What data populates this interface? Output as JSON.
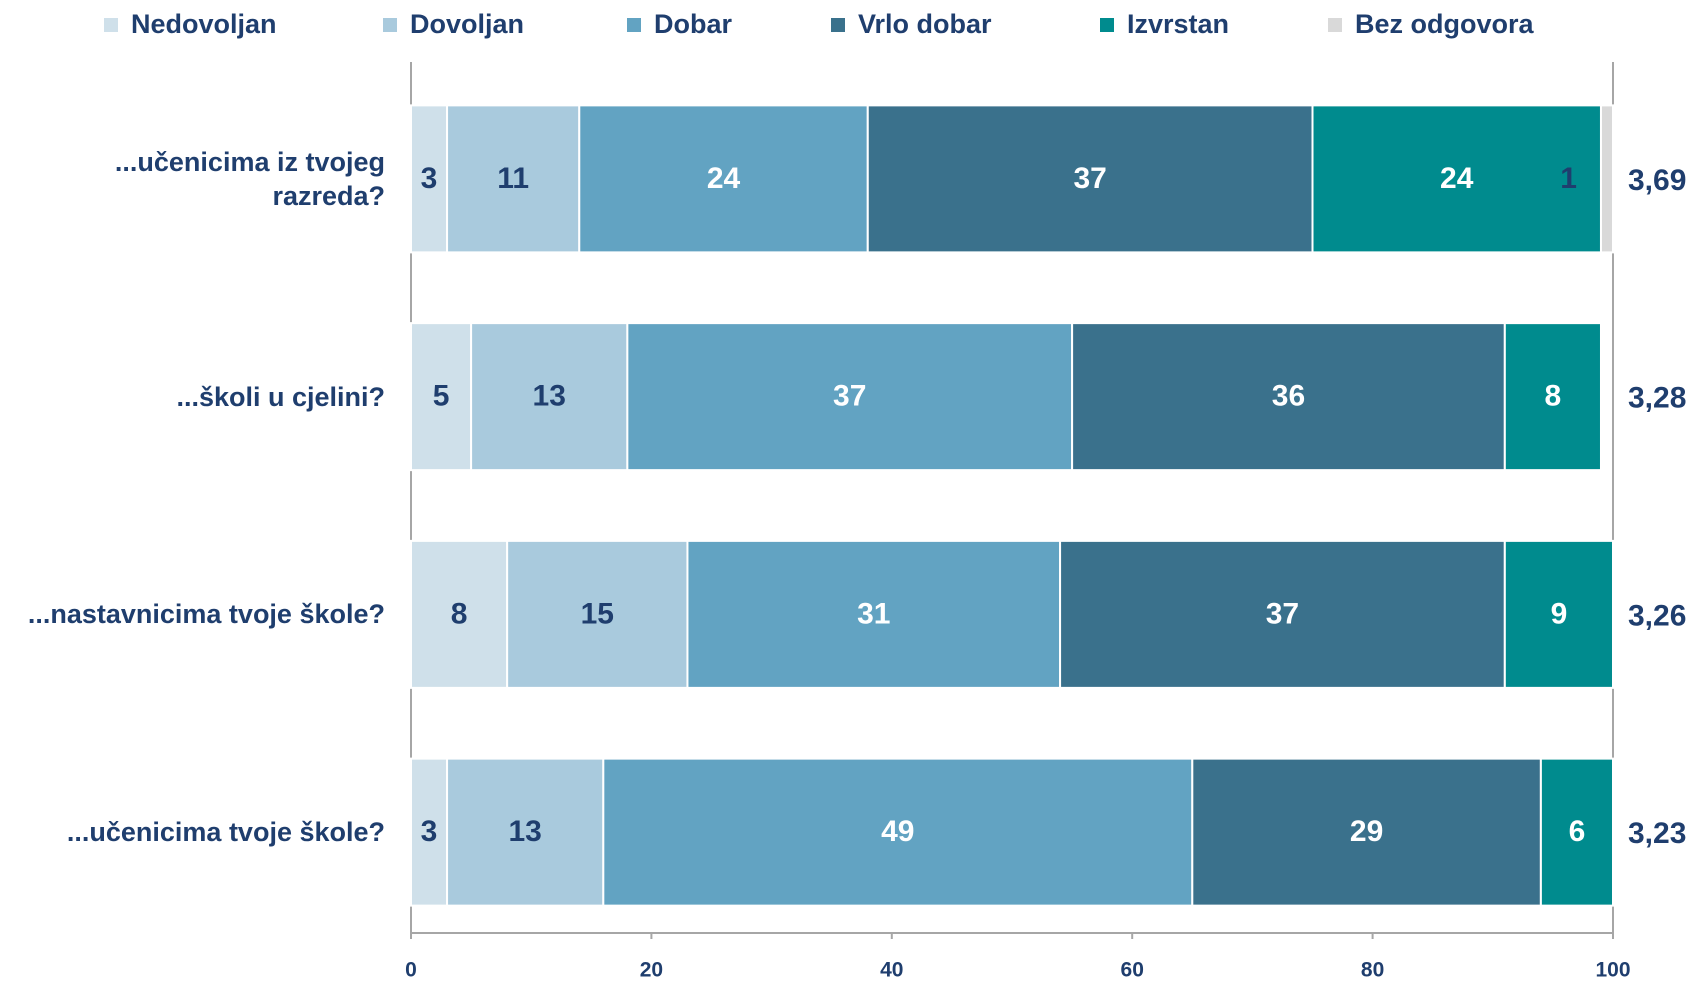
{
  "chart_data": {
    "type": "stacked_bar_horizontal",
    "categories": [
      "...učenicima iz tvojeg\nrazreda?",
      "...školi u cjelini?",
      "...nastavnicima tvoje škole?",
      "...učenicima tvoje škole?"
    ],
    "series": [
      {
        "name": "Nedovoljan",
        "color": "#cfe0ea",
        "label_color": "#1f3e6e",
        "values": [
          3,
          5,
          8,
          3
        ]
      },
      {
        "name": "Dovoljan",
        "color": "#a9cadd",
        "label_color": "#1f3e6e",
        "values": [
          11,
          13,
          15,
          13
        ]
      },
      {
        "name": "Dobar",
        "color": "#62a3c2",
        "label_color": "#ffffff",
        "values": [
          24,
          37,
          31,
          49
        ]
      },
      {
        "name": "Vrlo dobar",
        "color": "#3a718c",
        "label_color": "#ffffff",
        "values": [
          37,
          36,
          37,
          29
        ]
      },
      {
        "name": "Izvrstan",
        "color": "#008b8e",
        "label_color": "#ffffff",
        "values": [
          24,
          8,
          9,
          6
        ]
      },
      {
        "name": "Bez odgovora",
        "color": "#d9d9d9",
        "label_color": "#1f3e6e",
        "values": [
          1,
          null,
          null,
          null
        ]
      }
    ],
    "annotations": [
      "3,69",
      "3,28",
      "3,26",
      "3,23"
    ],
    "xlim": [
      0,
      100
    ],
    "xticks": [
      0,
      20,
      40,
      60,
      80,
      100
    ],
    "grid": false,
    "legend": "top"
  }
}
